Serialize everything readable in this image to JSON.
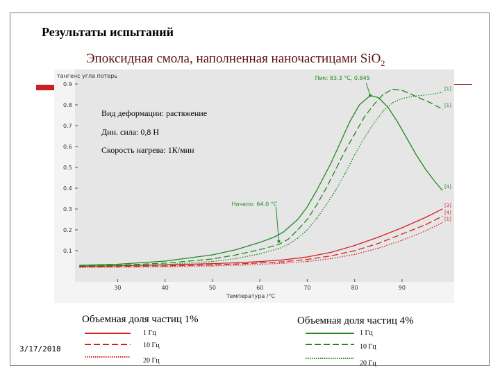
{
  "slide": {
    "heading": "Результаты испытаний",
    "subtitle_main": "Эпоксидная смола, наполненная наночастицами SiO",
    "subtitle_sub": "2",
    "date": "3/17/2018",
    "accent_red": "#cc1f1f"
  },
  "notes": {
    "deformation": "Вид деформации: растяжение",
    "force": "Дин. сила: 0,8 Н",
    "rate": "Скорость нагрева: 1К/мин"
  },
  "legend": {
    "left_title": "Объемная доля частиц 1%",
    "right_title": "Объемная доля частиц 4%",
    "left_items": [
      {
        "label": "1 Гц",
        "style": "solid",
        "color": "#d42020"
      },
      {
        "label": "10 Гц",
        "style": "dashed",
        "color": "#d42020"
      },
      {
        "label": "20 Гц",
        "style": "dotted",
        "color": "#d42020"
      }
    ],
    "right_items": [
      {
        "label": "1 Гц",
        "style": "solid",
        "color": "#1f8a1f"
      },
      {
        "label": "10 Гц",
        "style": "dashed",
        "color": "#1f8a1f"
      },
      {
        "label": "20 Гц",
        "style": "dotted",
        "color": "#1f8a1f"
      }
    ]
  },
  "chart_data": {
    "type": "line",
    "ylabel": "тангенс угла потерь",
    "xlabel": "Температура /°C",
    "xlim": [
      21,
      101
    ],
    "ylim": [
      -0.05,
      0.97
    ],
    "xticks": [
      30,
      40,
      50,
      60,
      70,
      80,
      90
    ],
    "yticks": [
      0.1,
      0.2,
      0.3,
      0.4,
      0.5,
      0.6,
      0.7,
      0.8,
      0.9
    ],
    "tick_labels_x": [
      "30",
      "40",
      "50",
      "60",
      "70",
      "80",
      "90"
    ],
    "tick_labels_y": [
      "0.1",
      "0.2",
      "0.3",
      "0.4",
      "0.5",
      "0.6",
      "0.7",
      "0.8",
      "0.9"
    ],
    "grid": false,
    "background": "#e6e6e6",
    "annotations": [
      {
        "text": "Пик: 83.3 °C, 0.845",
        "x": 83.3,
        "y": 0.845
      },
      {
        "text": "Начало: 64.0 °C",
        "x": 64.0,
        "y": 0.145
      }
    ],
    "curve_tags": [
      {
        "text": "[4]",
        "series": 3
      },
      {
        "text": "[1]",
        "series": 4
      },
      {
        "text": "[1]",
        "series": 5
      },
      {
        "text": "[3]",
        "series": 0
      },
      {
        "text": "[4]",
        "series": 1
      },
      {
        "text": "[1]",
        "series": 2
      }
    ],
    "series": [
      {
        "style": "solid",
        "color": "#d42020",
        "x": [
          22,
          30,
          40,
          50,
          55,
          60,
          65,
          70,
          75,
          80,
          85,
          90,
          95,
          98.5
        ],
        "y": [
          0.025,
          0.028,
          0.032,
          0.038,
          0.042,
          0.048,
          0.056,
          0.07,
          0.092,
          0.125,
          0.165,
          0.21,
          0.26,
          0.3
        ]
      },
      {
        "style": "dashed",
        "color": "#d42020",
        "x": [
          22,
          30,
          40,
          50,
          55,
          60,
          65,
          70,
          75,
          80,
          85,
          90,
          95,
          98.5
        ],
        "y": [
          0.022,
          0.024,
          0.027,
          0.032,
          0.036,
          0.041,
          0.047,
          0.058,
          0.075,
          0.1,
          0.135,
          0.18,
          0.225,
          0.265
        ]
      },
      {
        "style": "dotted",
        "color": "#d42020",
        "x": [
          22,
          30,
          40,
          50,
          55,
          60,
          65,
          70,
          75,
          80,
          85,
          90,
          95,
          98.5
        ],
        "y": [
          0.02,
          0.021,
          0.023,
          0.027,
          0.03,
          0.034,
          0.04,
          0.048,
          0.062,
          0.082,
          0.112,
          0.15,
          0.195,
          0.235
        ]
      },
      {
        "style": "solid",
        "color": "#1f8a1f",
        "x": [
          22,
          30,
          40,
          50,
          55,
          60,
          63,
          65,
          68,
          70,
          72,
          75,
          77,
          79,
          81,
          83.3,
          85,
          87,
          89,
          91,
          93,
          95,
          97,
          98.5
        ],
        "y": [
          0.03,
          0.035,
          0.05,
          0.08,
          0.105,
          0.14,
          0.165,
          0.19,
          0.25,
          0.31,
          0.39,
          0.52,
          0.62,
          0.72,
          0.8,
          0.845,
          0.835,
          0.79,
          0.72,
          0.64,
          0.56,
          0.49,
          0.43,
          0.39
        ]
      },
      {
        "style": "dashed",
        "color": "#1f8a1f",
        "x": [
          22,
          30,
          40,
          50,
          55,
          60,
          64,
          66,
          68,
          70,
          72,
          74,
          76,
          78,
          80,
          82,
          84,
          86,
          88,
          90,
          92,
          94,
          96,
          98.5
        ],
        "y": [
          0.028,
          0.03,
          0.04,
          0.06,
          0.08,
          0.105,
          0.13,
          0.155,
          0.2,
          0.25,
          0.32,
          0.4,
          0.49,
          0.58,
          0.66,
          0.74,
          0.8,
          0.85,
          0.875,
          0.87,
          0.85,
          0.83,
          0.81,
          0.78
        ]
      },
      {
        "style": "dotted",
        "color": "#1f8a1f",
        "x": [
          22,
          30,
          40,
          50,
          55,
          60,
          64,
          66,
          68,
          70,
          72,
          74,
          76,
          78,
          80,
          82,
          84,
          86,
          88,
          90,
          92,
          94,
          96,
          98.5
        ],
        "y": [
          0.025,
          0.027,
          0.033,
          0.048,
          0.062,
          0.085,
          0.11,
          0.13,
          0.16,
          0.2,
          0.255,
          0.32,
          0.39,
          0.47,
          0.56,
          0.64,
          0.71,
          0.77,
          0.81,
          0.83,
          0.84,
          0.845,
          0.85,
          0.86
        ]
      }
    ]
  }
}
